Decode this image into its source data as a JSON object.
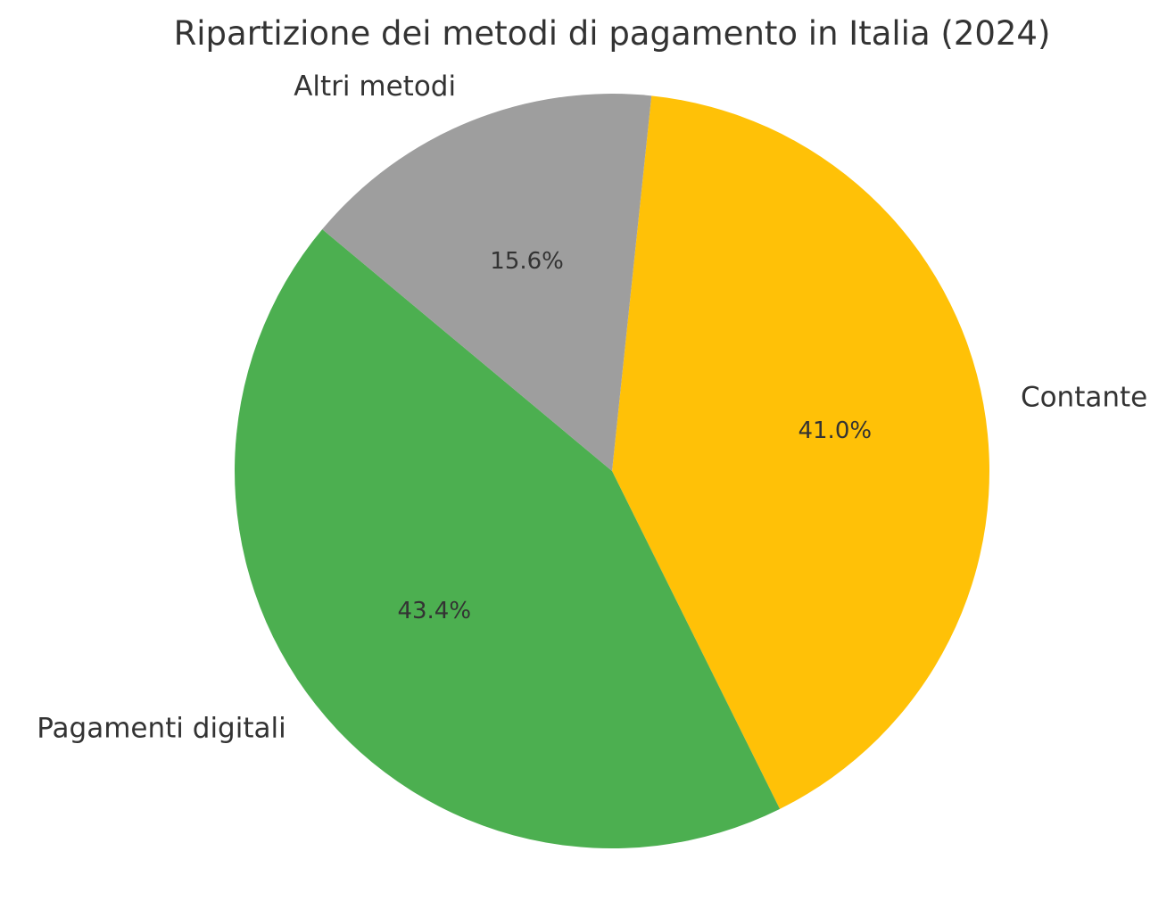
{
  "chart_data": {
    "type": "pie",
    "title": "Ripartizione dei metodi di pagamento in Italia (2024)",
    "start_angle_deg": -84,
    "direction": "clockwise",
    "slices": [
      {
        "label": "Contante",
        "value": 41.0,
        "pct_label": "41.0%",
        "color": "#FFC107"
      },
      {
        "label": "Pagamenti digitali",
        "value": 43.4,
        "pct_label": "43.4%",
        "color": "#4CAF50"
      },
      {
        "label": "Altri metodi",
        "value": 15.6,
        "pct_label": "15.6%",
        "color": "#9E9E9E"
      }
    ],
    "legend": "none",
    "grid": false
  }
}
